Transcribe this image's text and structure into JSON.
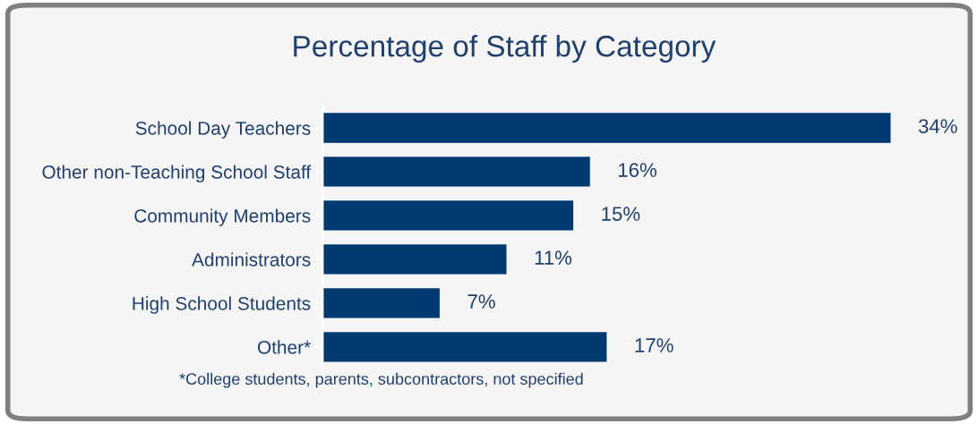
{
  "chart_data": {
    "type": "bar",
    "orientation": "horizontal",
    "title": "Percentage of Staff by Category",
    "categories": [
      "School Day Teachers",
      "Other non-Teaching School Staff",
      "Community Members",
      "Administrators",
      "High School Students",
      "Other*"
    ],
    "values": [
      34,
      16,
      15,
      11,
      7,
      17
    ],
    "value_labels": [
      "34%",
      "16%",
      "15%",
      "11%",
      "7%",
      "17%"
    ],
    "color": "#003a70",
    "annotations": [
      "*College students, parents, subcontractors, not specified"
    ],
    "grid": false,
    "legend": false,
    "tick_labels": "y"
  }
}
